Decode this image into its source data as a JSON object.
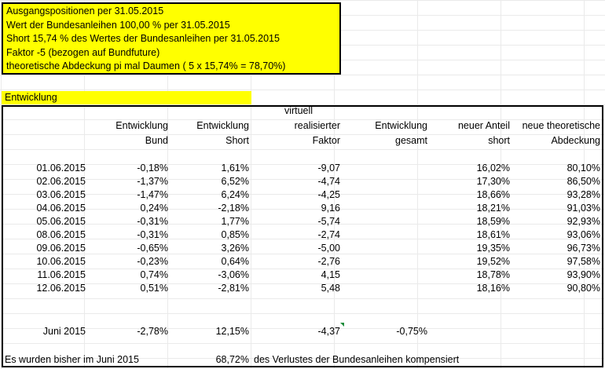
{
  "summary_box": {
    "lines": [
      "Ausgangspositionen per 31.05.2015",
      "Wert der Bundesanleihen 100,00 % per 31.05.2015",
      "Short 15,74 % des Wertes der Bundesanleihen per 31.05.2015",
      "Faktor -5 (bezogen auf Bundfuture)",
      "theoretische Abdeckung pi mal Daumen ( 5 x 15,74% = 78,70%)"
    ]
  },
  "section_title": "Entwicklung",
  "headers": {
    "bund": [
      "Entwicklung",
      "Bund"
    ],
    "short": [
      "Entwicklung",
      "Short"
    ],
    "faktor": [
      "virtuell",
      "realisierter",
      "Faktor"
    ],
    "gesamt": [
      "Entwicklung",
      "gesamt"
    ],
    "anteil": [
      "neuer Anteil",
      "short"
    ],
    "abdeckung": [
      "neue theoretische",
      "Abdeckung"
    ]
  },
  "rows": [
    {
      "date": "01.06.2015",
      "bund": "-0,18%",
      "short": "1,61%",
      "faktor": "-9,07",
      "anteil": "16,02%",
      "abdeckung": "80,10%"
    },
    {
      "date": "02.06.2015",
      "bund": "-1,37%",
      "short": "6,52%",
      "faktor": "-4,74",
      "anteil": "17,30%",
      "abdeckung": "86,50%"
    },
    {
      "date": "03.06.2015",
      "bund": "-1,47%",
      "short": "6,24%",
      "faktor": "-4,25",
      "anteil": "18,66%",
      "abdeckung": "93,28%"
    },
    {
      "date": "04.06.2015",
      "bund": "0,24%",
      "short": "-2,18%",
      "faktor": "9,16",
      "anteil": "18,21%",
      "abdeckung": "91,03%"
    },
    {
      "date": "05.06.2015",
      "bund": "-0,31%",
      "short": "1,77%",
      "faktor": "-5,74",
      "anteil": "18,59%",
      "abdeckung": "92,93%"
    },
    {
      "date": "08.06.2015",
      "bund": "-0,31%",
      "short": "0,85%",
      "faktor": "-2,74",
      "anteil": "18,61%",
      "abdeckung": "93,06%"
    },
    {
      "date": "09.06.2015",
      "bund": "-0,65%",
      "short": "3,26%",
      "faktor": "-5,00",
      "anteil": "19,35%",
      "abdeckung": "96,73%"
    },
    {
      "date": "10.06.2015",
      "bund": "-0,23%",
      "short": "0,64%",
      "faktor": "-2,76",
      "anteil": "19,52%",
      "abdeckung": "97,58%"
    },
    {
      "date": "11.06.2015",
      "bund": "0,74%",
      "short": "-3,06%",
      "faktor": "4,15",
      "anteil": "18,78%",
      "abdeckung": "93,90%"
    },
    {
      "date": "12.06.2015",
      "bund": "0,51%",
      "short": "-2,81%",
      "faktor": "5,48",
      "anteil": "18,16%",
      "abdeckung": "90,80%"
    }
  ],
  "summary_row": {
    "label": "Juni 2015",
    "bund": "-2,78%",
    "short": "12,15%",
    "faktor": "-4,37",
    "gesamt": "-0,75%"
  },
  "footer": {
    "text_left": "Es wurden bisher im Juni 2015",
    "value": "68,72%",
    "text_right": "des Verlustes der Bundesanleihen kompensiert"
  },
  "colors": {
    "highlight": "#ffff00",
    "comment_flag": "#1e8c3a"
  }
}
